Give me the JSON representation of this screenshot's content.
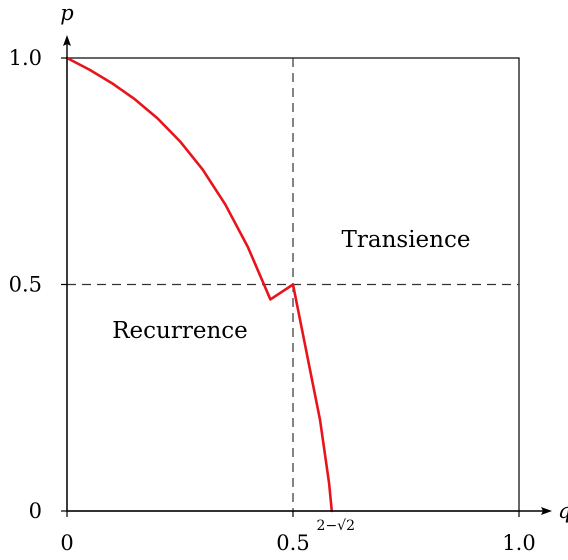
{
  "chart_data": {
    "type": "line",
    "xlabel": "q",
    "ylabel": "p",
    "xlim": [
      0,
      1
    ],
    "ylim": [
      0,
      1
    ],
    "x_ticks": [
      {
        "value": 0,
        "label": "0"
      },
      {
        "value": 0.5,
        "label": "0.5"
      },
      {
        "value": 1.0,
        "label": "1.0"
      }
    ],
    "y_ticks": [
      {
        "value": 0,
        "label": "0"
      },
      {
        "value": 0.5,
        "label": "0.5"
      },
      {
        "value": 1.0,
        "label": "1.0"
      }
    ],
    "marker": {
      "value": 0.5858,
      "label": "2−√2"
    },
    "reference_lines": {
      "x": 0.5,
      "y": 0.5
    },
    "regions": [
      {
        "label": "Transience",
        "q": 0.75,
        "p": 0.6
      },
      {
        "label": "Recurrence",
        "q": 0.25,
        "p": 0.4
      }
    ],
    "series": [
      {
        "color": "#e8141c",
        "x": [
          0,
          0.05,
          0.1,
          0.15,
          0.2,
          0.25,
          0.3,
          0.35,
          0.4,
          0.45,
          0.5,
          0.52,
          0.54,
          0.56,
          0.57,
          0.58,
          0.5858
        ],
        "y": [
          1.0,
          0.974,
          0.944,
          0.909,
          0.867,
          0.816,
          0.754,
          0.677,
          0.583,
          0.467,
          0.5,
          0.4,
          0.3,
          0.2,
          0.13,
          0.06,
          0.0
        ]
      }
    ]
  }
}
